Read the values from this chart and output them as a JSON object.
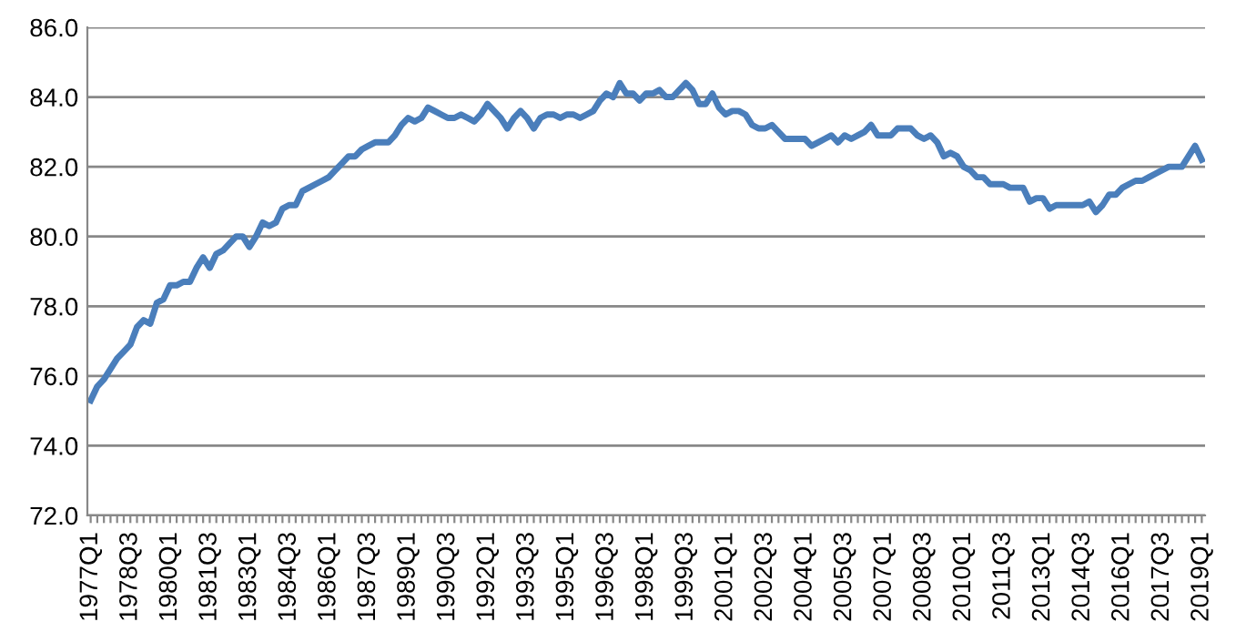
{
  "chart_data": {
    "type": "line",
    "categories": [
      "1977Q1",
      null,
      null,
      null,
      null,
      null,
      "1978Q3",
      null,
      null,
      null,
      null,
      null,
      "1980Q1",
      null,
      null,
      null,
      null,
      null,
      "1981Q3",
      null,
      null,
      null,
      null,
      null,
      "1983Q1",
      null,
      null,
      null,
      null,
      null,
      "1984Q3",
      null,
      null,
      null,
      null,
      null,
      "1986Q1",
      null,
      null,
      null,
      null,
      null,
      "1987Q3",
      null,
      null,
      null,
      null,
      null,
      "1989Q1",
      null,
      null,
      null,
      null,
      null,
      "1990Q3",
      null,
      null,
      null,
      null,
      null,
      "1992Q1",
      null,
      null,
      null,
      null,
      null,
      "1993Q3",
      null,
      null,
      null,
      null,
      null,
      "1995Q1",
      null,
      null,
      null,
      null,
      null,
      "1996Q3",
      null,
      null,
      null,
      null,
      null,
      "1998Q1",
      null,
      null,
      null,
      null,
      null,
      "1999Q3",
      null,
      null,
      null,
      null,
      null,
      "2001Q1",
      null,
      null,
      null,
      null,
      null,
      "2002Q3",
      null,
      null,
      null,
      null,
      null,
      "2004Q1",
      null,
      null,
      null,
      null,
      null,
      "2005Q3",
      null,
      null,
      null,
      null,
      null,
      "2007Q1",
      null,
      null,
      null,
      null,
      null,
      "2008Q3",
      null,
      null,
      null,
      null,
      null,
      "2010Q1",
      null,
      null,
      null,
      null,
      null,
      "2011Q3",
      null,
      null,
      null,
      null,
      null,
      "2013Q1",
      null,
      null,
      null,
      null,
      null,
      "2014Q3",
      null,
      null,
      null,
      null,
      null,
      "2016Q1",
      null,
      null,
      null,
      null,
      null,
      "2017Q3",
      null,
      null,
      null,
      null,
      null,
      "2019Q1"
    ],
    "series": [
      {
        "color": "#4a7ebb",
        "values": [
          75.3,
          75.7,
          75.9,
          76.2,
          76.5,
          76.7,
          76.9,
          77.4,
          77.6,
          77.5,
          78.1,
          78.2,
          78.6,
          78.6,
          78.7,
          78.7,
          79.1,
          79.4,
          79.1,
          79.5,
          79.6,
          79.8,
          80.0,
          80.0,
          79.7,
          80.0,
          80.4,
          80.3,
          80.4,
          80.8,
          80.9,
          80.9,
          81.3,
          81.4,
          81.5,
          81.6,
          81.7,
          81.9,
          82.1,
          82.3,
          82.3,
          82.5,
          82.6,
          82.7,
          82.7,
          82.7,
          82.9,
          83.2,
          83.4,
          83.3,
          83.4,
          83.7,
          83.6,
          83.5,
          83.4,
          83.4,
          83.5,
          83.4,
          83.3,
          83.5,
          83.8,
          83.6,
          83.4,
          83.1,
          83.4,
          83.6,
          83.4,
          83.1,
          83.4,
          83.5,
          83.5,
          83.4,
          83.5,
          83.5,
          83.4,
          83.5,
          83.6,
          83.9,
          84.1,
          84.0,
          84.4,
          84.1,
          84.1,
          83.9,
          84.1,
          84.1,
          84.2,
          84.0,
          84.0,
          84.2,
          84.4,
          84.2,
          83.8,
          83.8,
          84.1,
          83.7,
          83.5,
          83.6,
          83.6,
          83.5,
          83.2,
          83.1,
          83.1,
          83.2,
          83.0,
          82.8,
          82.8,
          82.8,
          82.8,
          82.6,
          82.7,
          82.8,
          82.9,
          82.7,
          82.9,
          82.8,
          82.9,
          83.0,
          83.2,
          82.9,
          82.9,
          82.9,
          83.1,
          83.1,
          83.1,
          82.9,
          82.8,
          82.9,
          82.7,
          82.3,
          82.4,
          82.3,
          82.0,
          81.9,
          81.7,
          81.7,
          81.5,
          81.5,
          81.5,
          81.4,
          81.4,
          81.4,
          81.0,
          81.1,
          81.1,
          80.8,
          80.9,
          80.9,
          80.9,
          80.9,
          80.9,
          81.0,
          80.7,
          80.9,
          81.2,
          81.2,
          81.4,
          81.5,
          81.6,
          81.6,
          81.7,
          81.8,
          81.9,
          82.0,
          82.0,
          82.0,
          82.3,
          82.6,
          82.2
        ]
      }
    ],
    "ylim": [
      72,
      86
    ],
    "yticks": [
      {
        "value": 72,
        "label": "72.0"
      },
      {
        "value": 74,
        "label": "74.0"
      },
      {
        "value": 76,
        "label": "76.0"
      },
      {
        "value": 78,
        "label": "78.0"
      },
      {
        "value": 80,
        "label": "80.0"
      },
      {
        "value": 82,
        "label": "82.0"
      },
      {
        "value": 84,
        "label": "84.0"
      },
      {
        "value": 86,
        "label": "86.0"
      }
    ],
    "grid": "y",
    "marker": "none",
    "line_style": "solid"
  }
}
